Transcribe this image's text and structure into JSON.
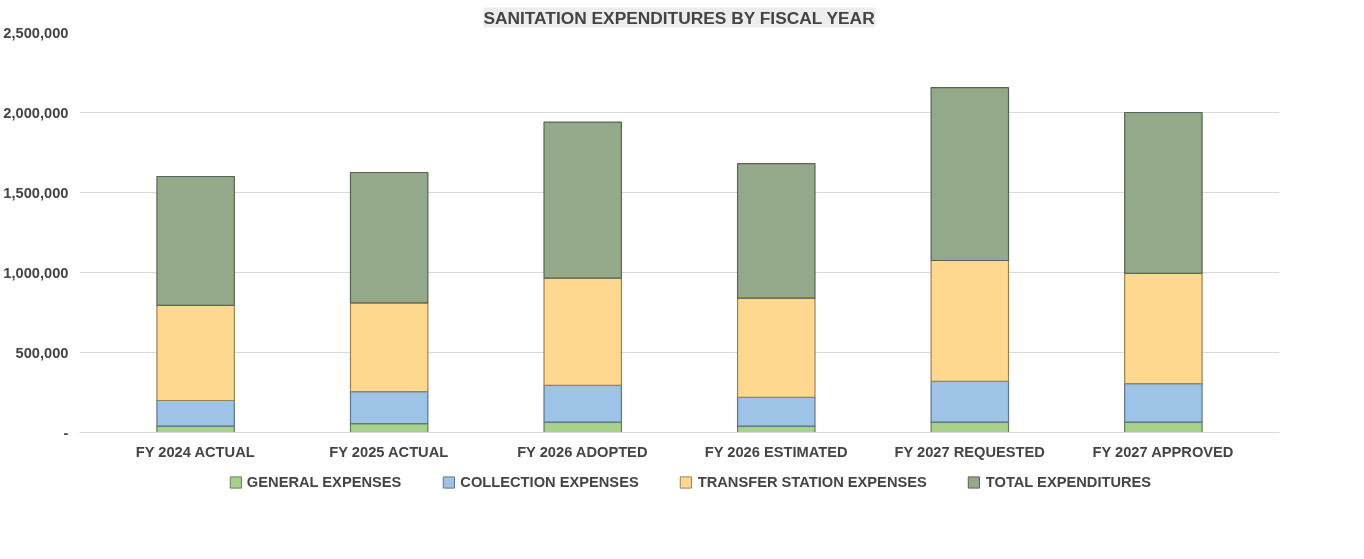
{
  "chart_data": {
    "type": "bar",
    "title": "SANITATION EXPENDITURES BY FISCAL YEAR",
    "stacked": true,
    "categories": [
      "FY 2024 ACTUAL",
      "FY 2025 ACTUAL",
      "FY 2026 ADOPTED",
      "FY 2026 ESTIMATED",
      "FY 2027 REQUESTED",
      "FY 2027 APPROVED"
    ],
    "series": [
      {
        "name": "GENERAL EXPENSES",
        "color": "#a9d18e",
        "values": [
          40000,
          55000,
          65000,
          40000,
          65000,
          65000
        ]
      },
      {
        "name": "COLLECTION EXPENSES",
        "color": "#9dc3e6",
        "values": [
          160000,
          200000,
          230000,
          180000,
          255000,
          240000
        ]
      },
      {
        "name": "TRANSFER STATION EXPENSES",
        "color": "#fed88f",
        "values": [
          595000,
          555000,
          670000,
          620000,
          755000,
          690000
        ]
      },
      {
        "name": "TOTAL EXPENDITURES",
        "color": "#94a88a",
        "values": [
          805000,
          815000,
          975000,
          840000,
          1080000,
          1005000
        ]
      }
    ],
    "ylim": [
      0,
      2500000
    ],
    "yticks": [
      {
        "value": 0,
        "label": "-"
      },
      {
        "value": 500000,
        "label": "500,000"
      },
      {
        "value": 1000000,
        "label": "1,000,000"
      },
      {
        "value": 1500000,
        "label": "1,500,000"
      },
      {
        "value": 2000000,
        "label": "2,000,000"
      },
      {
        "value": 2500000,
        "label": "2,500,000"
      }
    ],
    "grid": "y",
    "legend": "bottom"
  }
}
